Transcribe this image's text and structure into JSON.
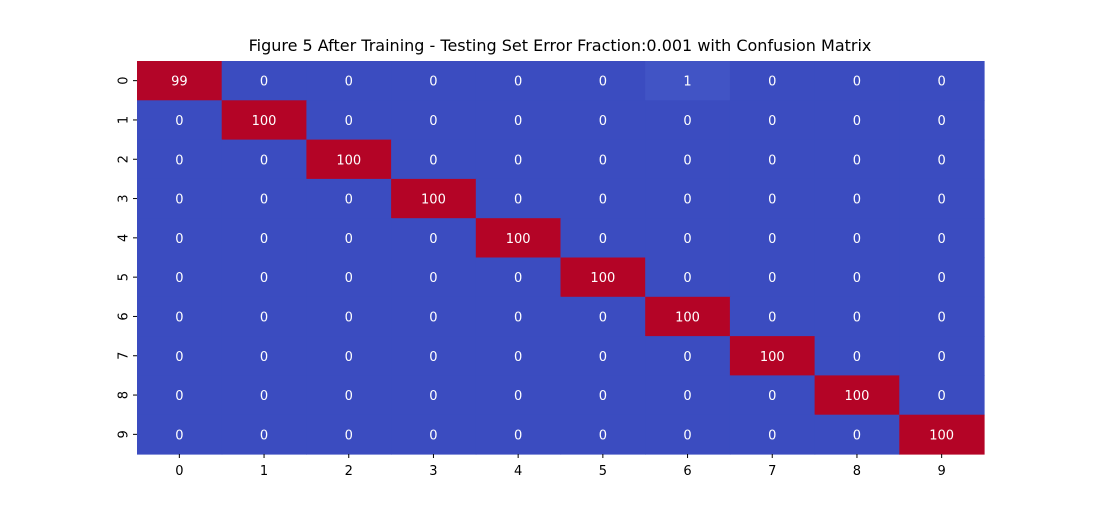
{
  "chart_data": {
    "type": "heatmap",
    "title": "Figure 5 After Training - Testing Set Error Fraction:0.001 with Confusion Matrix",
    "x_ticks": [
      "0",
      "1",
      "2",
      "3",
      "4",
      "5",
      "6",
      "7",
      "8",
      "9"
    ],
    "y_ticks": [
      "0",
      "1",
      "2",
      "3",
      "4",
      "5",
      "6",
      "7",
      "8",
      "9"
    ],
    "values": [
      [
        99,
        0,
        0,
        0,
        0,
        0,
        1,
        0,
        0,
        0
      ],
      [
        0,
        100,
        0,
        0,
        0,
        0,
        0,
        0,
        0,
        0
      ],
      [
        0,
        0,
        100,
        0,
        0,
        0,
        0,
        0,
        0,
        0
      ],
      [
        0,
        0,
        0,
        100,
        0,
        0,
        0,
        0,
        0,
        0
      ],
      [
        0,
        0,
        0,
        0,
        100,
        0,
        0,
        0,
        0,
        0
      ],
      [
        0,
        0,
        0,
        0,
        0,
        100,
        0,
        0,
        0,
        0
      ],
      [
        0,
        0,
        0,
        0,
        0,
        0,
        100,
        0,
        0,
        0
      ],
      [
        0,
        0,
        0,
        0,
        0,
        0,
        0,
        100,
        0,
        0
      ],
      [
        0,
        0,
        0,
        0,
        0,
        0,
        0,
        0,
        100,
        0
      ],
      [
        0,
        0,
        0,
        0,
        0,
        0,
        0,
        0,
        0,
        100
      ]
    ],
    "colormap": "coolwarm",
    "color_low": "#3b4cc0",
    "color_high": "#b40426",
    "vmin": 0,
    "vmax": 100,
    "colorbar": false
  }
}
